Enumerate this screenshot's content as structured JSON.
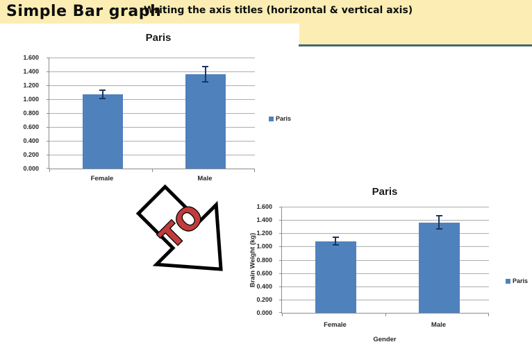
{
  "slide": {
    "background": "#FFFFFF"
  },
  "header": {
    "title": "Simple Bar graph",
    "subtitle": "Writing the axis titles (horizontal & vertical axis)",
    "band_color": "#FBEDB3",
    "rule_color": "#45686C"
  },
  "arrow": {
    "label": "TO",
    "label_color": "#C23B3B",
    "outline_color": "#000000",
    "fill_color": "#FFFFFF",
    "direction": "down-right"
  },
  "chart_data": [
    {
      "type": "bar",
      "title": "Paris",
      "categories": [
        "Female",
        "Male"
      ],
      "series": [
        {
          "name": "Paris",
          "values": [
            1.07,
            1.36
          ],
          "errors": [
            0.07,
            0.12
          ]
        }
      ],
      "ylim": [
        0,
        1.6
      ],
      "yticks": [
        "0.000",
        "0.200",
        "0.400",
        "0.600",
        "0.800",
        "1.000",
        "1.200",
        "1.400",
        "1.600"
      ],
      "xlabel": "",
      "ylabel": "",
      "legend": [
        "Paris"
      ],
      "legend_position": "right",
      "grid": true,
      "bar_color": "#4F81BD",
      "error_bar_color": "#17375E"
    },
    {
      "type": "bar",
      "title": "Paris",
      "categories": [
        "Female",
        "Male"
      ],
      "series": [
        {
          "name": "Paris",
          "values": [
            1.08,
            1.36
          ],
          "errors": [
            0.07,
            0.11
          ]
        }
      ],
      "ylim": [
        0,
        1.6
      ],
      "yticks": [
        "0.000",
        "0.200",
        "0.400",
        "0.600",
        "0.800",
        "1.000",
        "1.200",
        "1.400",
        "1.600"
      ],
      "xlabel": "Gender",
      "ylabel": "Brain Weight (kg)",
      "legend": [
        "Paris"
      ],
      "legend_position": "right",
      "grid": true,
      "bar_color": "#4F81BD",
      "error_bar_color": "#17375E"
    }
  ]
}
